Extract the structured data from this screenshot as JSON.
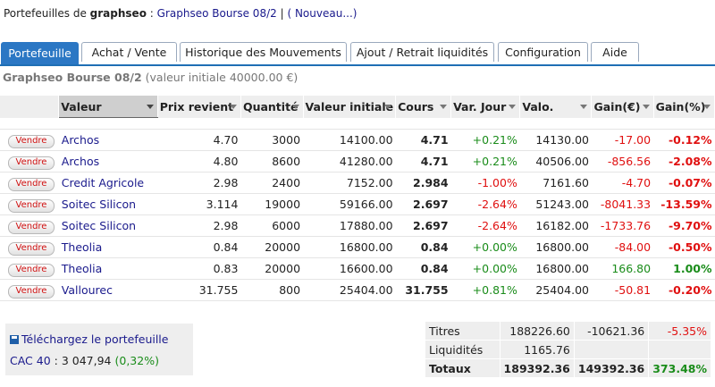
{
  "header": {
    "prefix": "Portefeuilles de",
    "user": "graphseo",
    "sep": ":",
    "portfolio_link": "Graphseo Bourse 08/2",
    "pipe": "|",
    "new_link": "( Nouveau...)"
  },
  "tabs": [
    "Portefeuille",
    "Achat / Vente",
    "Historique des Mouvements",
    "Ajout / Retrait liquidités",
    "Configuration",
    "Aide"
  ],
  "subtitle": {
    "name": "Graphseo Bourse 08/2",
    "detail": "(valeur initiale 40000.00 €)"
  },
  "columns": [
    "Valeur",
    "Prix revient",
    "Quantité",
    "Valeur initiale",
    "Cours",
    "Var. Jour",
    "Valo.",
    "Gain(€)",
    "Gain(%)"
  ],
  "sell_label": "Vendre",
  "rows": [
    {
      "valeur": "Archos",
      "prix": "4.70",
      "qte": "3000",
      "vinit": "14100.00",
      "cours": "4.71",
      "var": "+0.21%",
      "valo": "14130.00",
      "gain": "-17.00",
      "gainpct": "-0.12%"
    },
    {
      "valeur": "Archos",
      "prix": "4.80",
      "qte": "8600",
      "vinit": "41280.00",
      "cours": "4.71",
      "var": "+0.21%",
      "valo": "40506.00",
      "gain": "-856.56",
      "gainpct": "-2.08%"
    },
    {
      "valeur": "Credit Agricole",
      "prix": "2.98",
      "qte": "2400",
      "vinit": "7152.00",
      "cours": "2.984",
      "var": "-1.00%",
      "valo": "7161.60",
      "gain": "-4.70",
      "gainpct": "-0.07%"
    },
    {
      "valeur": "Soitec Silicon",
      "prix": "3.114",
      "qte": "19000",
      "vinit": "59166.00",
      "cours": "2.697",
      "var": "-2.64%",
      "valo": "51243.00",
      "gain": "-8041.33",
      "gainpct": "-13.59%"
    },
    {
      "valeur": "Soitec Silicon",
      "prix": "2.98",
      "qte": "6000",
      "vinit": "17880.00",
      "cours": "2.697",
      "var": "-2.64%",
      "valo": "16182.00",
      "gain": "-1733.76",
      "gainpct": "-9.70%"
    },
    {
      "valeur": "Theolia",
      "prix": "0.84",
      "qte": "20000",
      "vinit": "16800.00",
      "cours": "0.84",
      "var": "+0.00%",
      "valo": "16800.00",
      "gain": "-84.00",
      "gainpct": "-0.50%"
    },
    {
      "valeur": "Theolia",
      "prix": "0.83",
      "qte": "20000",
      "vinit": "16600.00",
      "cours": "0.84",
      "var": "+0.00%",
      "valo": "16800.00",
      "gain": "166.80",
      "gainpct": "1.00%"
    },
    {
      "valeur": "Vallourec",
      "prix": "31.755",
      "qte": "800",
      "vinit": "25404.00",
      "cours": "31.755",
      "var": "+0.81%",
      "valo": "25404.00",
      "gain": "-50.81",
      "gainpct": "-0.20%"
    }
  ],
  "download": {
    "label": "Téléchargez le portefeuille",
    "icon": "floppy-disk-icon"
  },
  "cac": {
    "label": "CAC 40",
    "value": ": 3 047,94",
    "change": "(0,32%)"
  },
  "summary": {
    "titres": {
      "label": "Titres",
      "valo": "188226.60",
      "gain": "-10621.36",
      "pct": "-5.35%"
    },
    "liquidites": {
      "label": "Liquidités",
      "valo": "1165.76"
    },
    "totaux": {
      "label": "Totaux",
      "valo": "189392.36",
      "gain": "149392.36",
      "pct": "373.48%"
    }
  },
  "colors": {
    "accent": "#2b77c4",
    "positive": "#1a8c1a",
    "negative": "#e01010",
    "link": "#1a1a8c"
  }
}
